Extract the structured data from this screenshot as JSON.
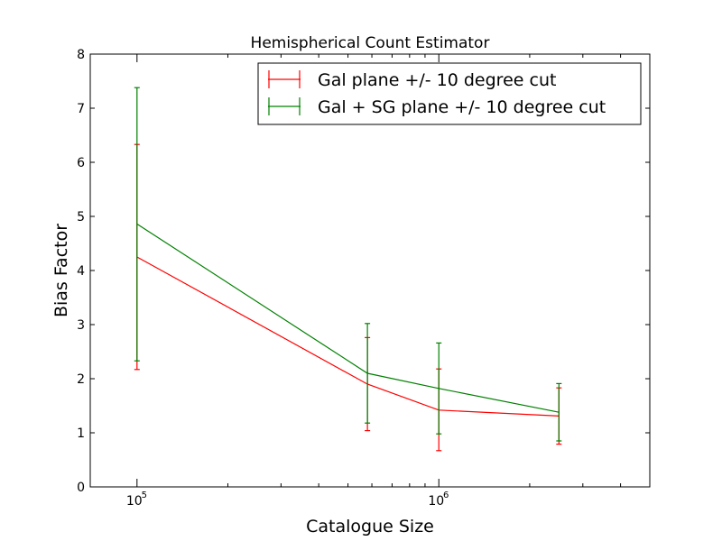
{
  "chart_data": {
    "type": "line",
    "title": "Hemispherical Count Estimator",
    "xlabel": "Catalogue Size",
    "ylabel": "Bias Factor",
    "xscale": "log",
    "xlim": [
      70000,
      5000000
    ],
    "ylim": [
      0,
      8
    ],
    "yticks": [
      "0",
      "1",
      "2",
      "3",
      "4",
      "5",
      "6",
      "7",
      "8"
    ],
    "xticks": [
      {
        "value": 100000,
        "base": "10",
        "exp": "5"
      },
      {
        "value": 1000000,
        "base": "10",
        "exp": "6"
      }
    ],
    "x_minor_ticks": [
      200000,
      300000,
      400000,
      500000,
      600000,
      700000,
      800000,
      900000,
      2000000,
      3000000,
      4000000
    ],
    "grid": false,
    "legend_position": "top-right",
    "series": [
      {
        "name": "Gal plane +/- 10 degree cut",
        "color": "#ff0000",
        "x": [
          100000,
          580000,
          1000000,
          2500000
        ],
        "y": [
          4.25,
          1.9,
          1.42,
          1.31
        ],
        "err_low": [
          2.17,
          1.04,
          0.67,
          0.79
        ],
        "err_high": [
          6.33,
          2.76,
          2.18,
          1.83
        ]
      },
      {
        "name": "Gal + SG plane +/- 10 degree cut",
        "color": "#008000",
        "x": [
          100000,
          580000,
          1000000,
          2500000
        ],
        "y": [
          4.86,
          2.1,
          1.82,
          1.38
        ],
        "err_low": [
          2.33,
          1.18,
          0.98,
          0.85
        ],
        "err_high": [
          7.38,
          3.02,
          2.66,
          1.91
        ]
      }
    ]
  }
}
